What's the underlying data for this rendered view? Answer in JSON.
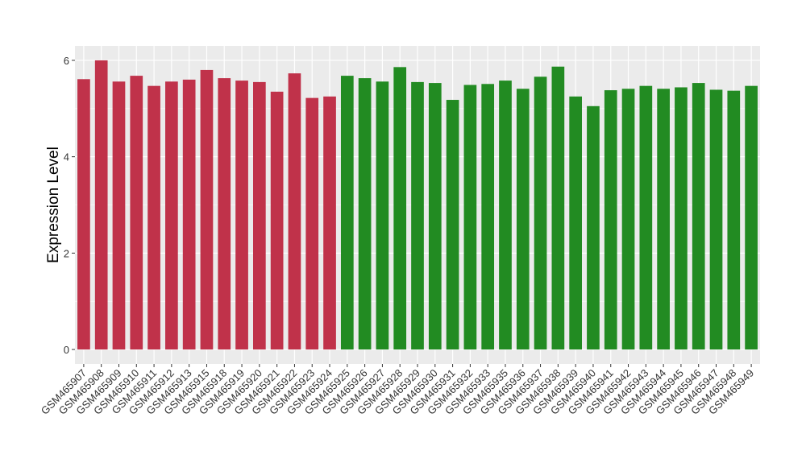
{
  "chart_data": {
    "type": "bar",
    "title": "",
    "xlabel": "",
    "ylabel": "Expression Level",
    "ylim": [
      -0.3,
      6.3
    ],
    "yticks": [
      0,
      2,
      4,
      6
    ],
    "grid": true,
    "legend": "none",
    "colors": {
      "group1": "#c0324a",
      "group2": "#228b22",
      "panel": "#ebebeb",
      "grid": "#ffffff"
    },
    "categories": [
      "GSM465907",
      "GSM465908",
      "GSM465909",
      "GSM465910",
      "GSM465911",
      "GSM465912",
      "GSM465913",
      "GSM465915",
      "GSM465918",
      "GSM465919",
      "GSM465920",
      "GSM465921",
      "GSM465922",
      "GSM465923",
      "GSM465924",
      "GSM465925",
      "GSM465926",
      "GSM465927",
      "GSM465928",
      "GSM465929",
      "GSM465930",
      "GSM465931",
      "GSM465932",
      "GSM465933",
      "GSM465935",
      "GSM465936",
      "GSM465937",
      "GSM465938",
      "GSM465939",
      "GSM465940",
      "GSM465941",
      "GSM465942",
      "GSM465943",
      "GSM465944",
      "GSM465945",
      "GSM465946",
      "GSM465947",
      "GSM465948",
      "GSM465949"
    ],
    "values": [
      5.61,
      6.0,
      5.56,
      5.68,
      5.47,
      5.56,
      5.6,
      5.8,
      5.63,
      5.58,
      5.55,
      5.35,
      5.73,
      5.22,
      5.25,
      5.68,
      5.63,
      5.56,
      5.86,
      5.55,
      5.53,
      5.18,
      5.49,
      5.51,
      5.58,
      5.41,
      5.66,
      5.87,
      5.25,
      5.05,
      5.38,
      5.41,
      5.47,
      5.41,
      5.44,
      5.53,
      5.39,
      5.37,
      5.47
    ],
    "groups": [
      1,
      1,
      1,
      1,
      1,
      1,
      1,
      1,
      1,
      1,
      1,
      1,
      1,
      1,
      1,
      2,
      2,
      2,
      2,
      2,
      2,
      2,
      2,
      2,
      2,
      2,
      2,
      2,
      2,
      2,
      2,
      2,
      2,
      2,
      2,
      2,
      2,
      2,
      2
    ]
  }
}
